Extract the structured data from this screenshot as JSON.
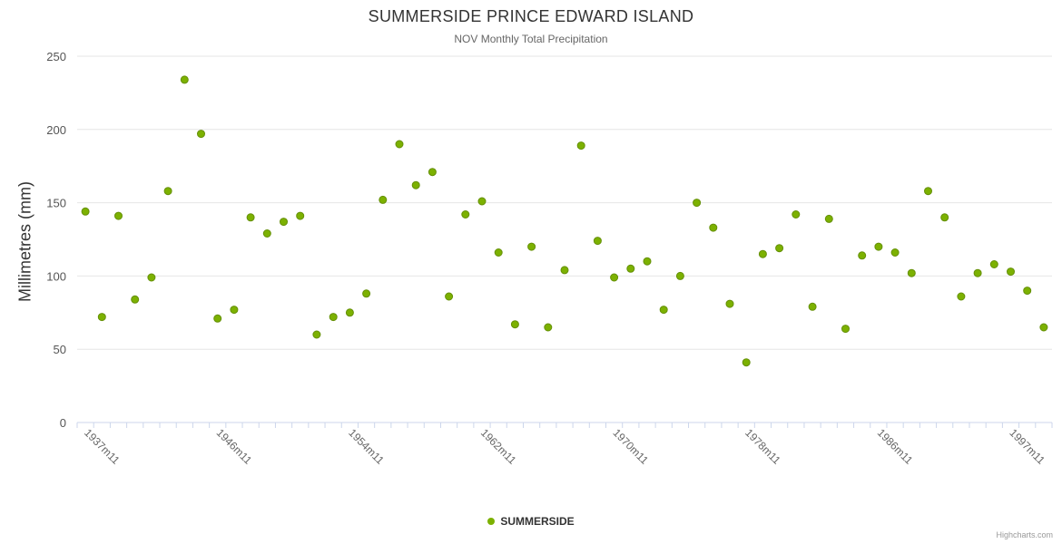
{
  "chart_data": {
    "type": "scatter",
    "title": "SUMMERSIDE PRINCE EDWARD ISLAND",
    "subtitle": "NOV Monthly Total Precipitation",
    "ylabel": "Millimetres (mm)",
    "ylim": [
      0,
      250
    ],
    "yticks": [
      0,
      50,
      100,
      150,
      200,
      250
    ],
    "grid": true,
    "legend_position": "bottom-center",
    "xticks": [
      {
        "index": 0,
        "label": "1937m11"
      },
      {
        "index": 8,
        "label": "1946m11"
      },
      {
        "index": 16,
        "label": "1954m11"
      },
      {
        "index": 24,
        "label": "1962m11"
      },
      {
        "index": 32,
        "label": "1970m11"
      },
      {
        "index": 40,
        "label": "1978m11"
      },
      {
        "index": 48,
        "label": "1986m11"
      },
      {
        "index": 56,
        "label": "1997m11"
      }
    ],
    "series": [
      {
        "name": "SUMMERSIDE",
        "color": "#7cb101",
        "marker_stroke": "#648f06",
        "values": [
          144,
          72,
          141,
          84,
          99,
          158,
          234,
          197,
          71,
          77,
          140,
          129,
          137,
          141,
          60,
          72,
          75,
          88,
          152,
          190,
          162,
          171,
          86,
          142,
          151,
          116,
          67,
          120,
          65,
          104,
          189,
          124,
          99,
          105,
          110,
          77,
          100,
          150,
          133,
          81,
          41,
          115,
          119,
          142,
          79,
          139,
          64,
          114,
          120,
          116,
          102,
          158,
          140,
          86,
          102,
          108,
          103,
          90,
          65
        ]
      }
    ]
  },
  "credits": "Highcharts.com",
  "colors": {
    "gridline": "#e6e6e6",
    "axis_line": "#ccd6eb",
    "tick": "#ccd6eb",
    "y_tick_label": "#555555",
    "x_tick_label": "#666666"
  }
}
